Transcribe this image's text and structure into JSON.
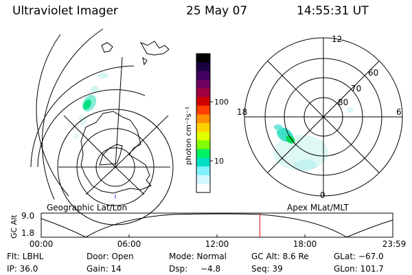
{
  "header": {
    "title": "Ultraviolet Imager",
    "date": "25 May 07",
    "time": "14:55:31 UT"
  },
  "geographic_panel": {
    "label": "Geographic Lat/Lon"
  },
  "colorbar": {
    "label": "photon cm⁻²s⁻¹",
    "ticks": [
      "100",
      "10"
    ],
    "colors": [
      "#000000",
      "#1a0040",
      "#400060",
      "#700060",
      "#a00040",
      "#d00000",
      "#ff4000",
      "#ff9000",
      "#ffd000",
      "#e0ff00",
      "#80ff00",
      "#00f060",
      "#00e0c0",
      "#80f0ff",
      "#d0f8ff",
      "#ffffff"
    ]
  },
  "polar_panel": {
    "label": "Apex MLat/MLT",
    "mlt_labels": [
      "12",
      "18",
      "6",
      "0"
    ],
    "lat_labels": [
      "60",
      "70",
      "80"
    ]
  },
  "altitude_plot": {
    "ylabel": "GC Alt",
    "yticks": [
      "9.0",
      "1.8"
    ],
    "xticks": [
      "00:00",
      "06:00",
      "12:00",
      "18:00",
      "23:59"
    ],
    "current_time_fraction": 0.622,
    "marker_color": "#e00000"
  },
  "info": {
    "flt": "Flt: LBHL",
    "door": "Door: Open",
    "mode": "Mode: Normal",
    "gc_alt": "GC Alt: 8.6 Re",
    "glat": "GLat: −67.0",
    "ip": "IP: 36.0",
    "gain": "Gain: 14",
    "dsp_label": "Dsp:",
    "dsp_value": "−4.8",
    "seq": "Seq: 39",
    "glon": "GLon: 101.7"
  }
}
